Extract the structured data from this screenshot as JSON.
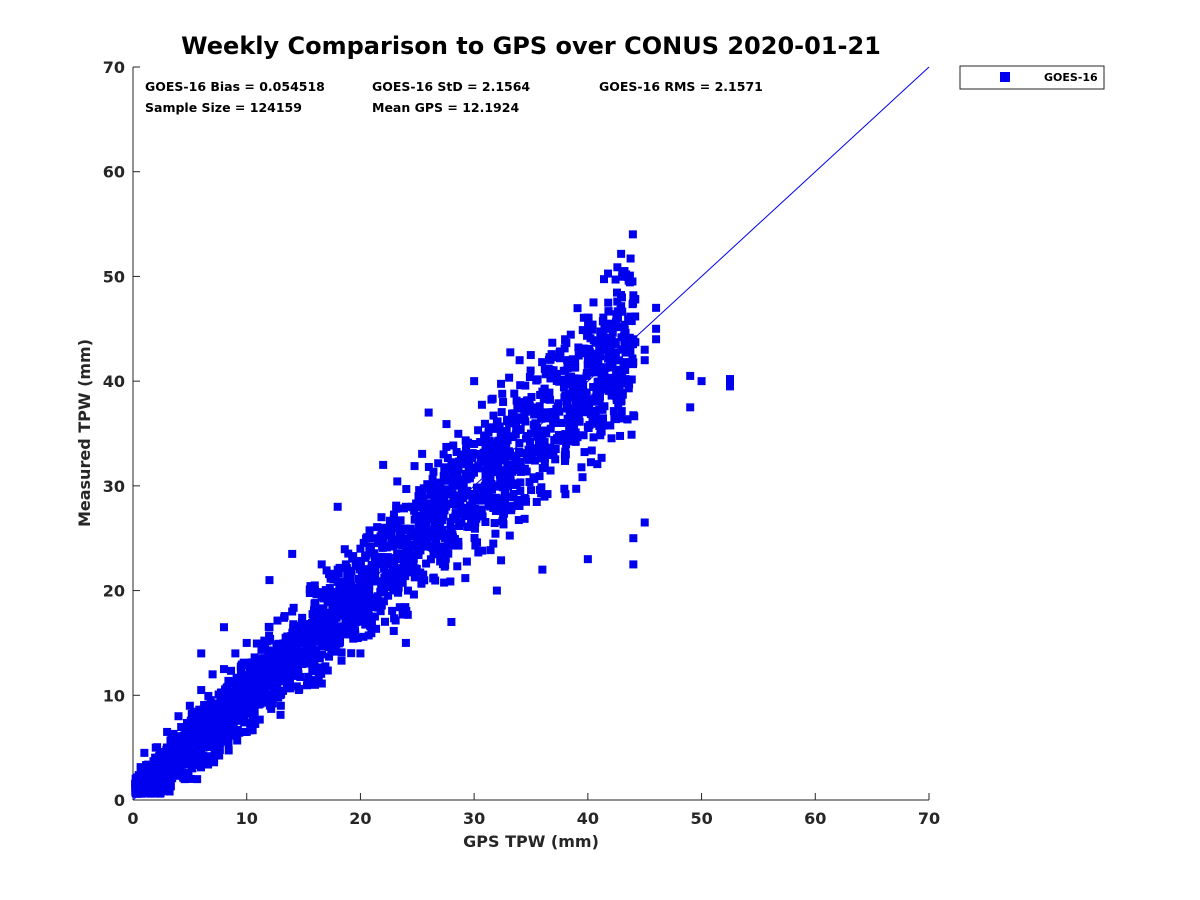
{
  "chart_data": {
    "type": "scatter",
    "title": "Weekly Comparison to GPS over CONUS 2020-01-21",
    "xlabel": "GPS TPW (mm)",
    "ylabel": "Measured TPW (mm)",
    "xlim": [
      0,
      70
    ],
    "ylim": [
      0,
      70
    ],
    "xticks": [
      "0",
      "10",
      "20",
      "30",
      "40",
      "50",
      "60",
      "70"
    ],
    "yticks": [
      "0",
      "10",
      "20",
      "30",
      "40",
      "50",
      "60",
      "70"
    ],
    "grid": false,
    "legend_position": "outside-top-right",
    "reference_line": {
      "x": [
        0,
        70
      ],
      "y": [
        0,
        70
      ]
    },
    "stats": {
      "bias": "GOES-16 Bias = 0.054518",
      "std": "GOES-16 StD = 2.1564",
      "rms": "GOES-16 RMS = 2.1571",
      "sample_size": "Sample Size = 124159",
      "mean_gps": "Mean GPS = 12.1924"
    },
    "series": [
      {
        "name": "GOES-16",
        "color": "#0000ee",
        "marker": "square",
        "points": [
          [
            0.5,
            1.5
          ],
          [
            1,
            4.5
          ],
          [
            1.5,
            2
          ],
          [
            2,
            5
          ],
          [
            2.5,
            3
          ],
          [
            3,
            6.5
          ],
          [
            3.5,
            3.5
          ],
          [
            4,
            8
          ],
          [
            4.5,
            5
          ],
          [
            5,
            9
          ],
          [
            5.5,
            6
          ],
          [
            6,
            10.5
          ],
          [
            6.5,
            7
          ],
          [
            7,
            12
          ],
          [
            7.5,
            8
          ],
          [
            8,
            12.5
          ],
          [
            8.5,
            9.5
          ],
          [
            9,
            14
          ],
          [
            9.5,
            10
          ],
          [
            10,
            15
          ],
          [
            11,
            12
          ],
          [
            12,
            16.5
          ],
          [
            13,
            14
          ],
          [
            14,
            18
          ],
          [
            15,
            15
          ],
          [
            16,
            20
          ],
          [
            17,
            17
          ],
          [
            18,
            22
          ],
          [
            19,
            19
          ],
          [
            20,
            24
          ],
          [
            21,
            21
          ],
          [
            22,
            26
          ],
          [
            23,
            23
          ],
          [
            24,
            28
          ],
          [
            25,
            25
          ],
          [
            26,
            30
          ],
          [
            27,
            27
          ],
          [
            28,
            32
          ],
          [
            29,
            29
          ],
          [
            30,
            34
          ],
          [
            31,
            31
          ],
          [
            32,
            36
          ],
          [
            33,
            32
          ],
          [
            34,
            38
          ],
          [
            35,
            35
          ],
          [
            36,
            39
          ],
          [
            37,
            36
          ],
          [
            38,
            41
          ],
          [
            39,
            37
          ],
          [
            40,
            42
          ],
          [
            41,
            39
          ],
          [
            42,
            43
          ],
          [
            43,
            40
          ],
          [
            44,
            44
          ],
          [
            45,
            42
          ],
          [
            46,
            45
          ],
          [
            3.5,
            6
          ],
          [
            6,
            14
          ],
          [
            8,
            16.5
          ],
          [
            10,
            6.5
          ],
          [
            12,
            21
          ],
          [
            13,
            9
          ],
          [
            14,
            23.5
          ],
          [
            16,
            11
          ],
          [
            18,
            28
          ],
          [
            20,
            14
          ],
          [
            22,
            32
          ],
          [
            24,
            15
          ],
          [
            26,
            37
          ],
          [
            28,
            17
          ],
          [
            30,
            40
          ],
          [
            32,
            20
          ],
          [
            34,
            42
          ],
          [
            36,
            22
          ],
          [
            38,
            44
          ],
          [
            40,
            23
          ],
          [
            42,
            45
          ],
          [
            43,
            48
          ],
          [
            44,
            48.2
          ],
          [
            45,
            26.5
          ],
          [
            44,
            22.5
          ],
          [
            45,
            43
          ],
          [
            46,
            47
          ],
          [
            46,
            44
          ],
          [
            44,
            25
          ],
          [
            49,
            40.5
          ],
          [
            49,
            37.5
          ],
          [
            50,
            40
          ],
          [
            52.5,
            39.5
          ],
          [
            52.5,
            40.2
          ]
        ]
      }
    ]
  }
}
